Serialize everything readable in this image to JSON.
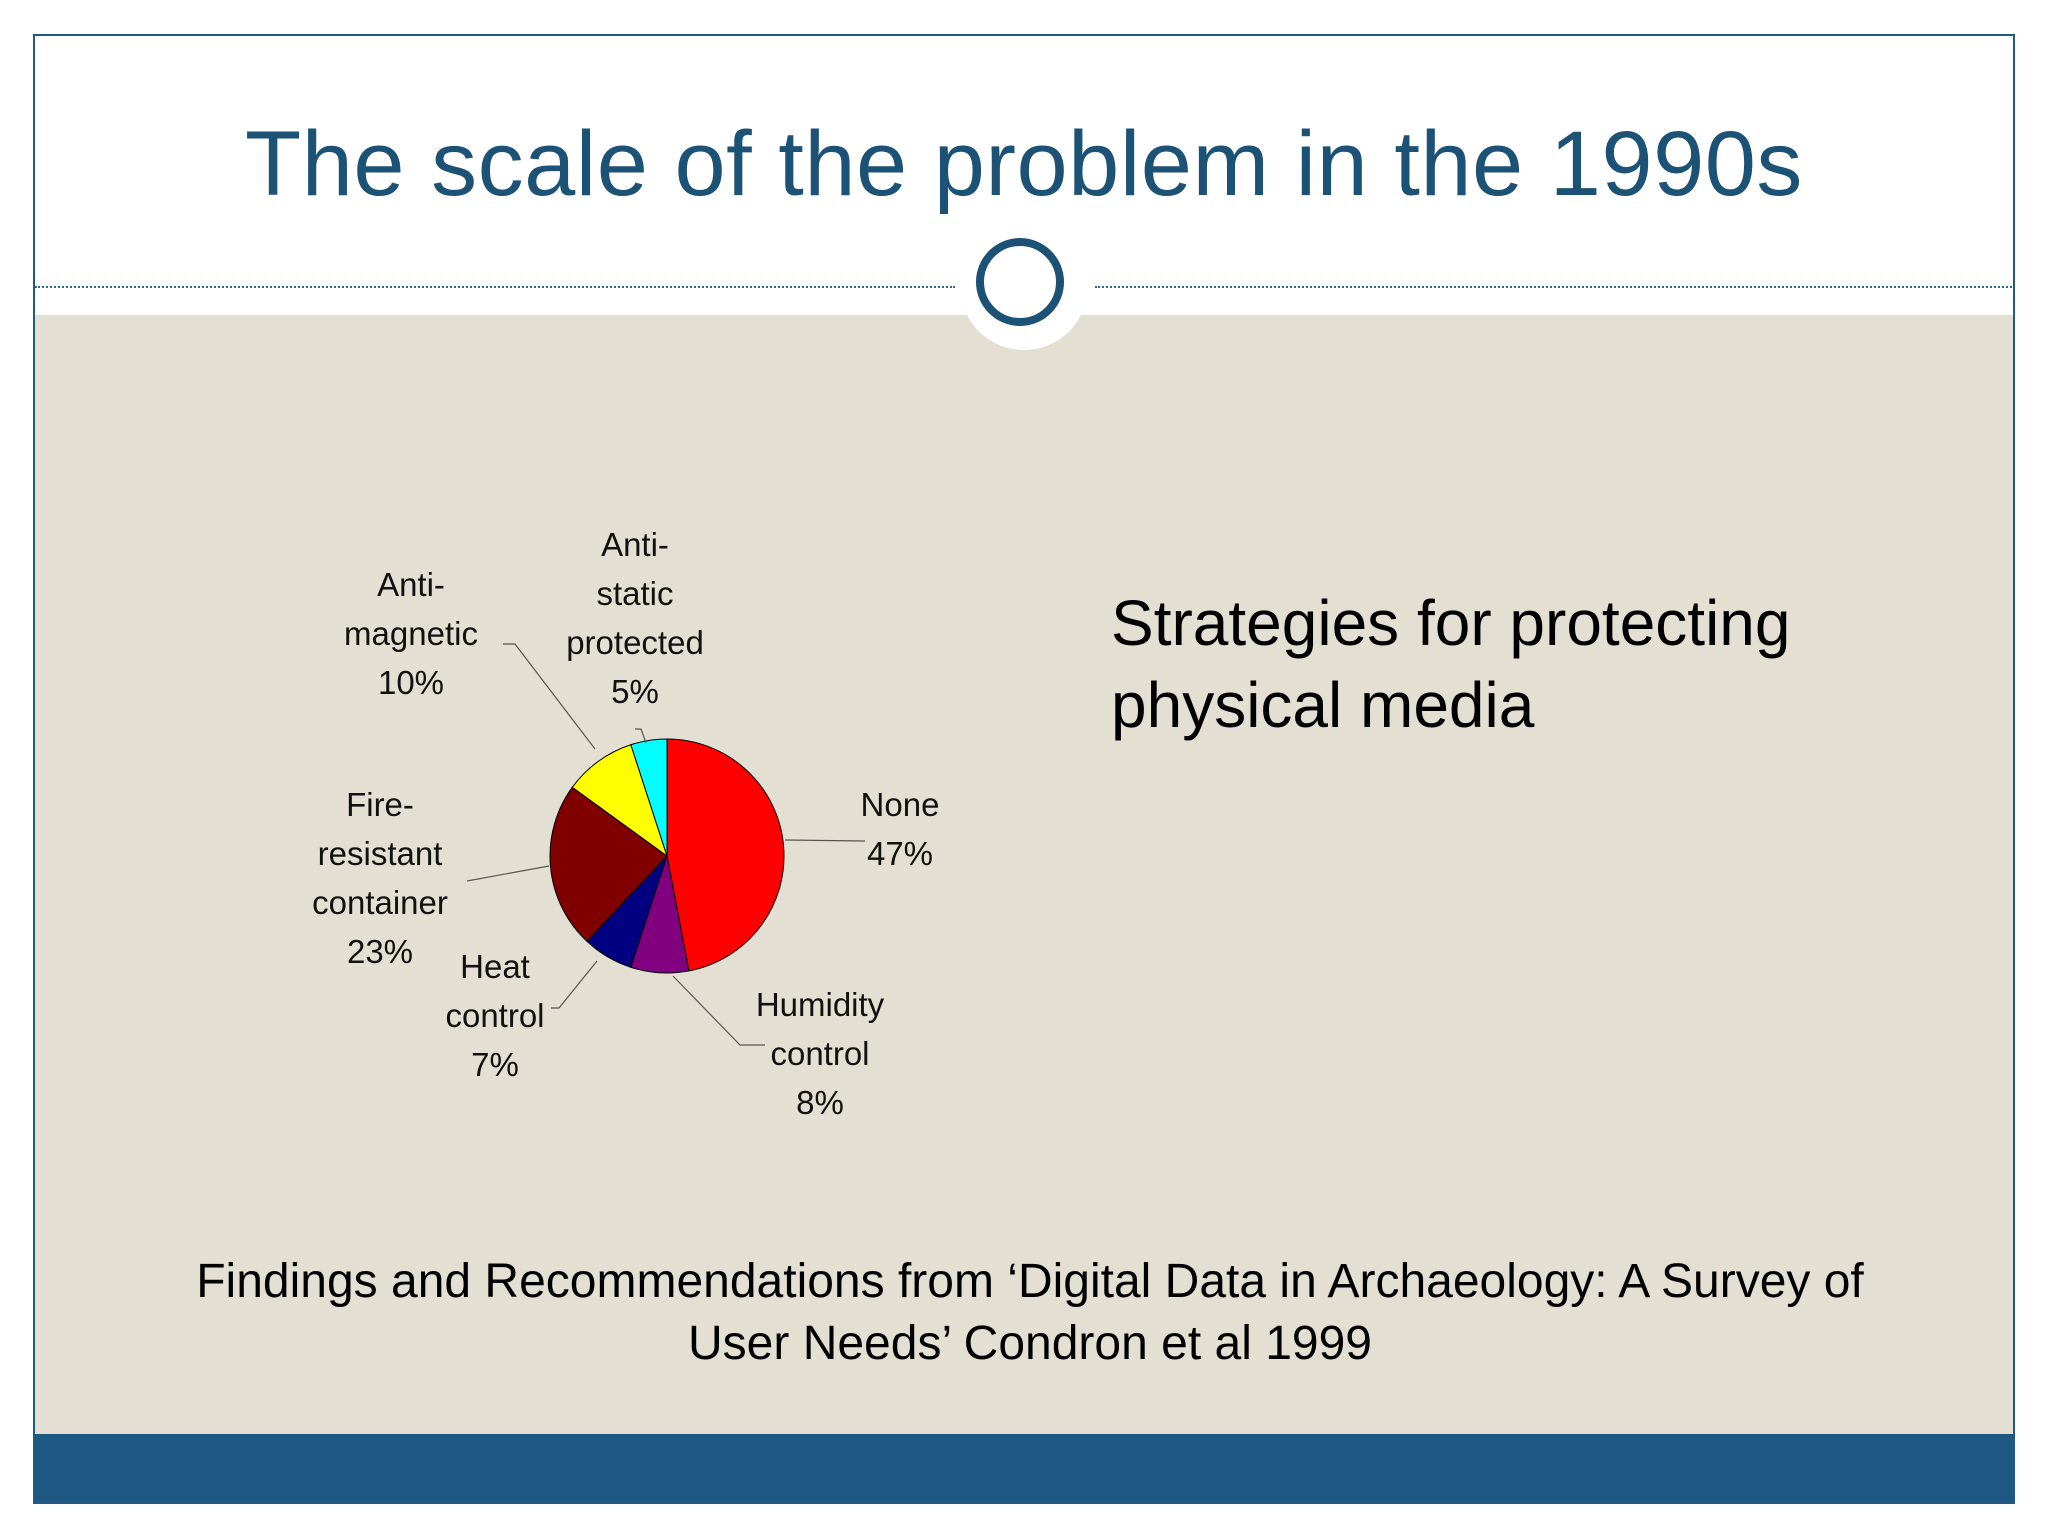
{
  "slide": {
    "title": "The scale of the problem in the 1990s",
    "right_text": "Strategies for protecting physical media",
    "citation": "Findings and  Recommendations from ‘Digital Data in Archaeology: A Survey of User Needs’ Condron et al 1999"
  },
  "colors": {
    "title": "#1c5276",
    "accent_bar": "#1e5781",
    "body_background": "#e3dfd2"
  },
  "chart_data": {
    "type": "pie",
    "title": "",
    "slices": [
      {
        "label": "None",
        "value": 47,
        "display": "None\n47%",
        "color": "#ff0000"
      },
      {
        "label": "Humidity control",
        "value": 8,
        "display": "Humidity\ncontrol\n8%",
        "color": "#800080"
      },
      {
        "label": "Heat control",
        "value": 7,
        "display": "Heat\ncontrol\n7%",
        "color": "#000080"
      },
      {
        "label": "Fire-resistant container",
        "value": 23,
        "display": "Fire-\nresistant\ncontainer\n23%",
        "color": "#800000"
      },
      {
        "label": "Anti-magnetic",
        "value": 10,
        "display": "Anti-\nmagnetic\n10%",
        "color": "#ffff00"
      },
      {
        "label": "Anti-static protected",
        "value": 5,
        "display": "Anti-\nstatic\nprotected\n5%",
        "color": "#00ffff"
      }
    ]
  }
}
